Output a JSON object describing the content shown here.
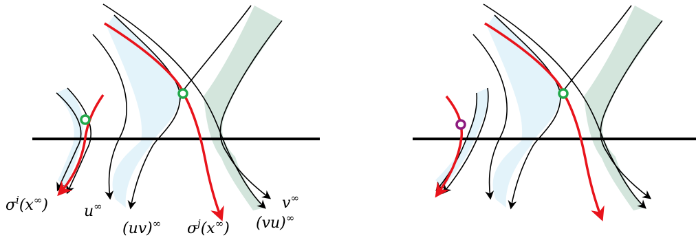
{
  "colors": {
    "stroke": "#000000",
    "path_highlight": "#e8131b",
    "band_blue": "#e3f3fa",
    "band_green": "#d3e5dc",
    "marker_green": "#22a84a",
    "marker_purple": "#8e1b7f"
  },
  "labels": {
    "sigma_i": {
      "base": "σ",
      "sup": "i",
      "rest": "(x",
      "rest_sup": "∞",
      "close": ")"
    },
    "u_inf": {
      "base": "u",
      "sup": "∞"
    },
    "uv_inf": {
      "base": "(uv)",
      "sup": "∞"
    },
    "sigma_j": {
      "base": "σ",
      "sup": "j",
      "rest": "(x",
      "rest_sup": "∞",
      "close": ")"
    },
    "vu_inf": {
      "base": "(vu)",
      "sup": "∞"
    },
    "v_inf": {
      "base": "v",
      "sup": "∞"
    }
  }
}
